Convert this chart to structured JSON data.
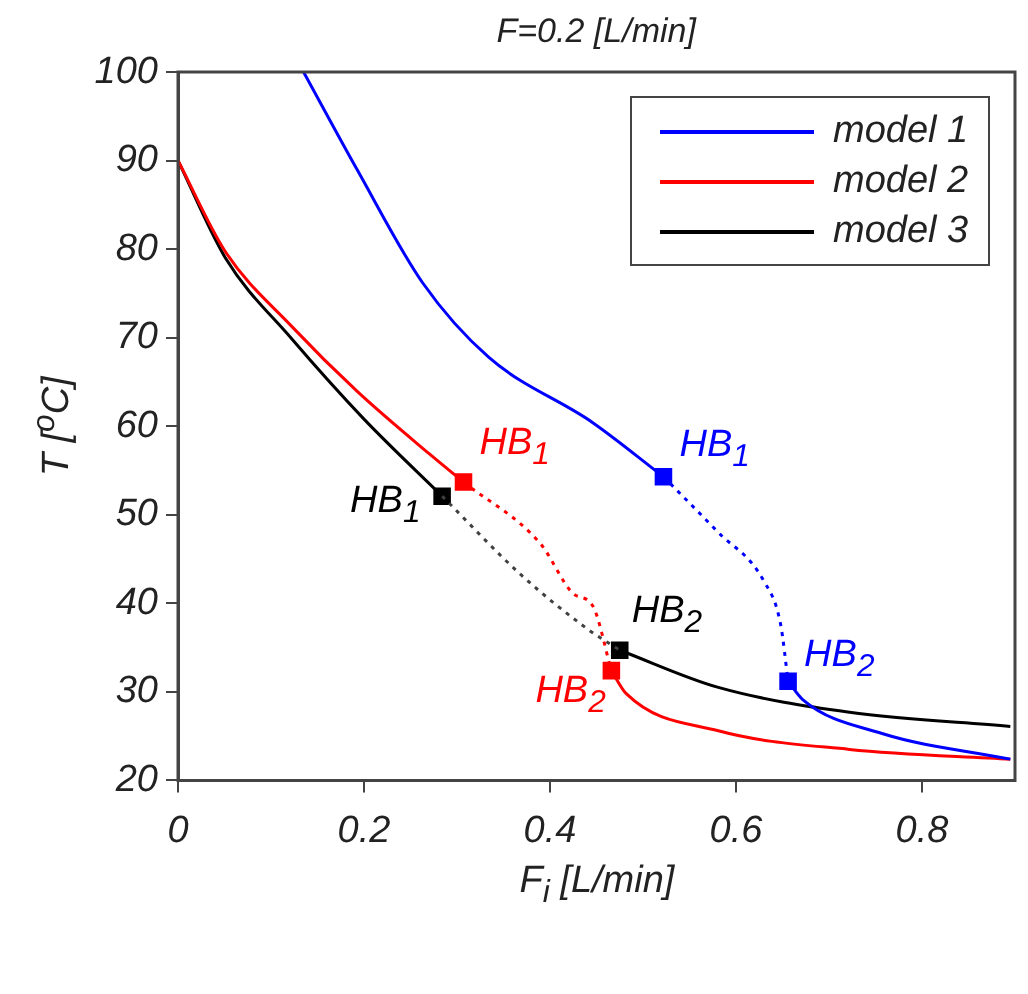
{
  "chart_data": {
    "type": "line",
    "title": "F=0.2 [L/min]",
    "xlabel": "F$_{i}$ [L/min]",
    "ylabel": "T [$^{o}$C]",
    "xlim": [
      0,
      0.9
    ],
    "xticks": [
      0,
      0.2,
      0.4,
      0.6,
      0.8
    ],
    "ylim": [
      20,
      100
    ],
    "yticks": [
      20,
      30,
      40,
      50,
      60,
      70,
      80,
      90,
      100
    ],
    "legend": "top right",
    "annotations": [
      {
        "text": "HB$_{1}$",
        "x": 0.522,
        "y": 54.3
      },
      {
        "text": "HB$_{2}$",
        "x": 0.656,
        "y": 31.2
      },
      {
        "text": "HB$_{1}$",
        "x": 0.307,
        "y": 53.7
      },
      {
        "text": "HB$_{2}$",
        "x": 0.466,
        "y": 32.4
      },
      {
        "text": "HB$_{1}$",
        "x": 0.284,
        "y": 52.1
      },
      {
        "text": "HB$_{2}$",
        "x": 0.475,
        "y": 34.7
      }
    ],
    "series": [
      {
        "name": "model 1",
        "color": "#0000ff",
        "x": [
          0.135,
          0.193,
          0.263,
          0.334,
          0.446,
          0.522,
          0.58,
          0.63,
          0.648,
          0.656,
          0.672,
          0.757,
          0.895
        ],
        "values": [
          100,
          88.9,
          76.2,
          67.8,
          60.4,
          54.3,
          null,
          null,
          null,
          31.2,
          29.1,
          25.3,
          22.4
        ]
      },
      {
        "name": "model 2",
        "color": "#ff0000",
        "x": [
          0,
          0.051,
          0.122,
          0.193,
          0.27,
          0.307,
          0.39,
          0.425,
          0.446,
          0.466,
          0.482,
          0.581,
          0.722,
          0.895
        ],
        "values": [
          90,
          79.7,
          71.3,
          63.9,
          56.9,
          53.7,
          null,
          null,
          null,
          32.4,
          29.8,
          25.6,
          23.5,
          22.4
        ]
      },
      {
        "name": "model 3",
        "color": "#000000",
        "x": [
          0,
          0.051,
          0.122,
          0.2,
          0.284,
          0.369,
          0.439,
          0.475,
          0.581,
          0.722,
          0.895
        ],
        "values": [
          90,
          79.0,
          69.9,
          60.8,
          52.1,
          null,
          null,
          34.7,
          30.5,
          27.7,
          26.1
        ]
      },
      {
        "type": "line",
        "line_style": "dotted",
        "color": "#0000ff",
        "x": [
          0.522,
          0.58,
          0.63,
          0.648,
          0.656
        ],
        "values": [
          54.3,
          48.1,
          42.5,
          37.6,
          31.2
        ]
      },
      {
        "type": "line",
        "line_style": "dotted",
        "color": "#ff0000",
        "x": [
          0.307,
          0.39,
          0.425,
          0.446,
          0.466
        ],
        "values": [
          53.7,
          46.7,
          41.1,
          39.7,
          32.4
        ]
      },
      {
        "type": "line",
        "line_style": "dotted",
        "color": "#404040",
        "x": [
          0.284,
          0.369,
          0.439,
          0.475
        ],
        "values": [
          52.1,
          43.2,
          37.2,
          34.7
        ]
      },
      {
        "type": "scatter",
        "marker": "square",
        "color": "#0000ff",
        "x": [
          0.522,
          0.656
        ],
        "values": [
          54.3,
          31.2
        ]
      },
      {
        "type": "scatter",
        "marker": "square",
        "color": "#ff0000",
        "x": [
          0.307,
          0.466
        ],
        "values": [
          53.7,
          32.4
        ]
      },
      {
        "type": "scatter",
        "marker": "square",
        "color": "#000000",
        "x": [
          0.284,
          0.475
        ],
        "values": [
          52.1,
          34.7
        ]
      }
    ]
  }
}
